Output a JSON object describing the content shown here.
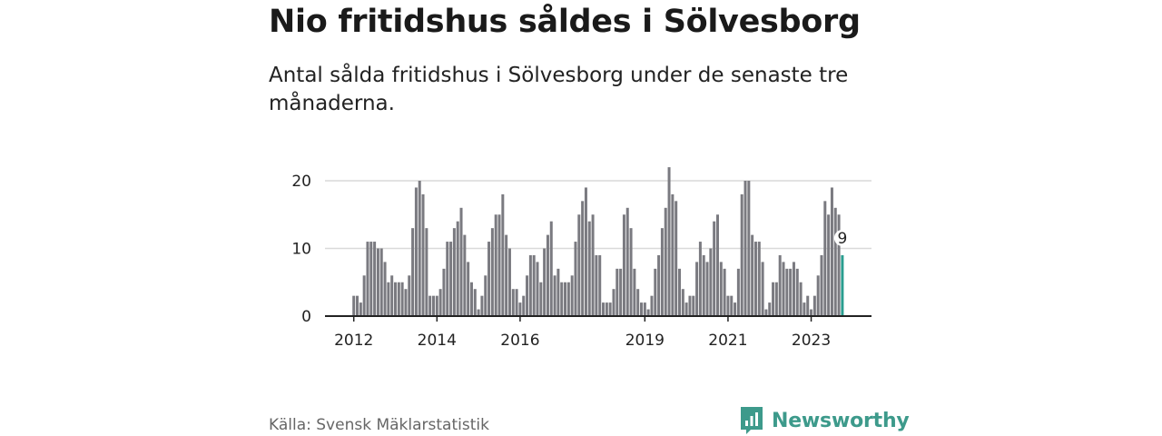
{
  "title": "Nio fritidshus såldes i Sölvesborg",
  "subtitle": "Antal sålda fritidshus i Sölvesborg under de senaste tre månaderna.",
  "source": "Källa: Svensk Mäklarstatistik",
  "logo_text": "Newsworthy",
  "colors": {
    "bar": "#7a7a80",
    "highlight": "#2a9d8f",
    "grid": "#d9d9d9",
    "axis": "#222222",
    "brand": "#3d9a8b"
  },
  "chart_data": {
    "type": "bar",
    "title": "Nio fritidshus såldes i Sölvesborg",
    "subtitle": "Antal sålda fritidshus i Sölvesborg under de senaste tre månaderna.",
    "xlabel": "",
    "ylabel": "",
    "ylim": [
      0,
      23
    ],
    "yticks": [
      0,
      10,
      20
    ],
    "grid": true,
    "legend": "none",
    "start": "2012-01",
    "xtick_labels": [
      {
        "label": "2012",
        "index": 0
      },
      {
        "label": "2014",
        "index": 24
      },
      {
        "label": "2016",
        "index": 48
      },
      {
        "label": "2019",
        "index": 84
      },
      {
        "label": "2021",
        "index": 108
      },
      {
        "label": "2023",
        "index": 132
      }
    ],
    "values": [
      3,
      3,
      2,
      6,
      11,
      11,
      11,
      10,
      10,
      8,
      5,
      6,
      5,
      5,
      5,
      4,
      6,
      13,
      19,
      20,
      18,
      13,
      3,
      3,
      3,
      4,
      7,
      11,
      11,
      13,
      14,
      16,
      12,
      8,
      5,
      4,
      1,
      3,
      6,
      11,
      13,
      15,
      15,
      18,
      12,
      10,
      4,
      4,
      2,
      3,
      6,
      9,
      9,
      8,
      5,
      10,
      12,
      14,
      6,
      7,
      5,
      5,
      5,
      6,
      11,
      15,
      17,
      19,
      14,
      15,
      9,
      9,
      2,
      2,
      2,
      4,
      7,
      7,
      15,
      16,
      13,
      7,
      4,
      2,
      2,
      1,
      3,
      7,
      9,
      13,
      16,
      22,
      18,
      17,
      7,
      4,
      2,
      3,
      3,
      8,
      11,
      9,
      8,
      10,
      14,
      15,
      8,
      7,
      3,
      3,
      2,
      7,
      18,
      20,
      20,
      12,
      11,
      11,
      8,
      1,
      2,
      5,
      5,
      9,
      8,
      7,
      7,
      8,
      7,
      5,
      2,
      3,
      1,
      3,
      6,
      9,
      17,
      15,
      19,
      16,
      15,
      9
    ],
    "highlight_index": 141,
    "highlight_label": "9"
  }
}
